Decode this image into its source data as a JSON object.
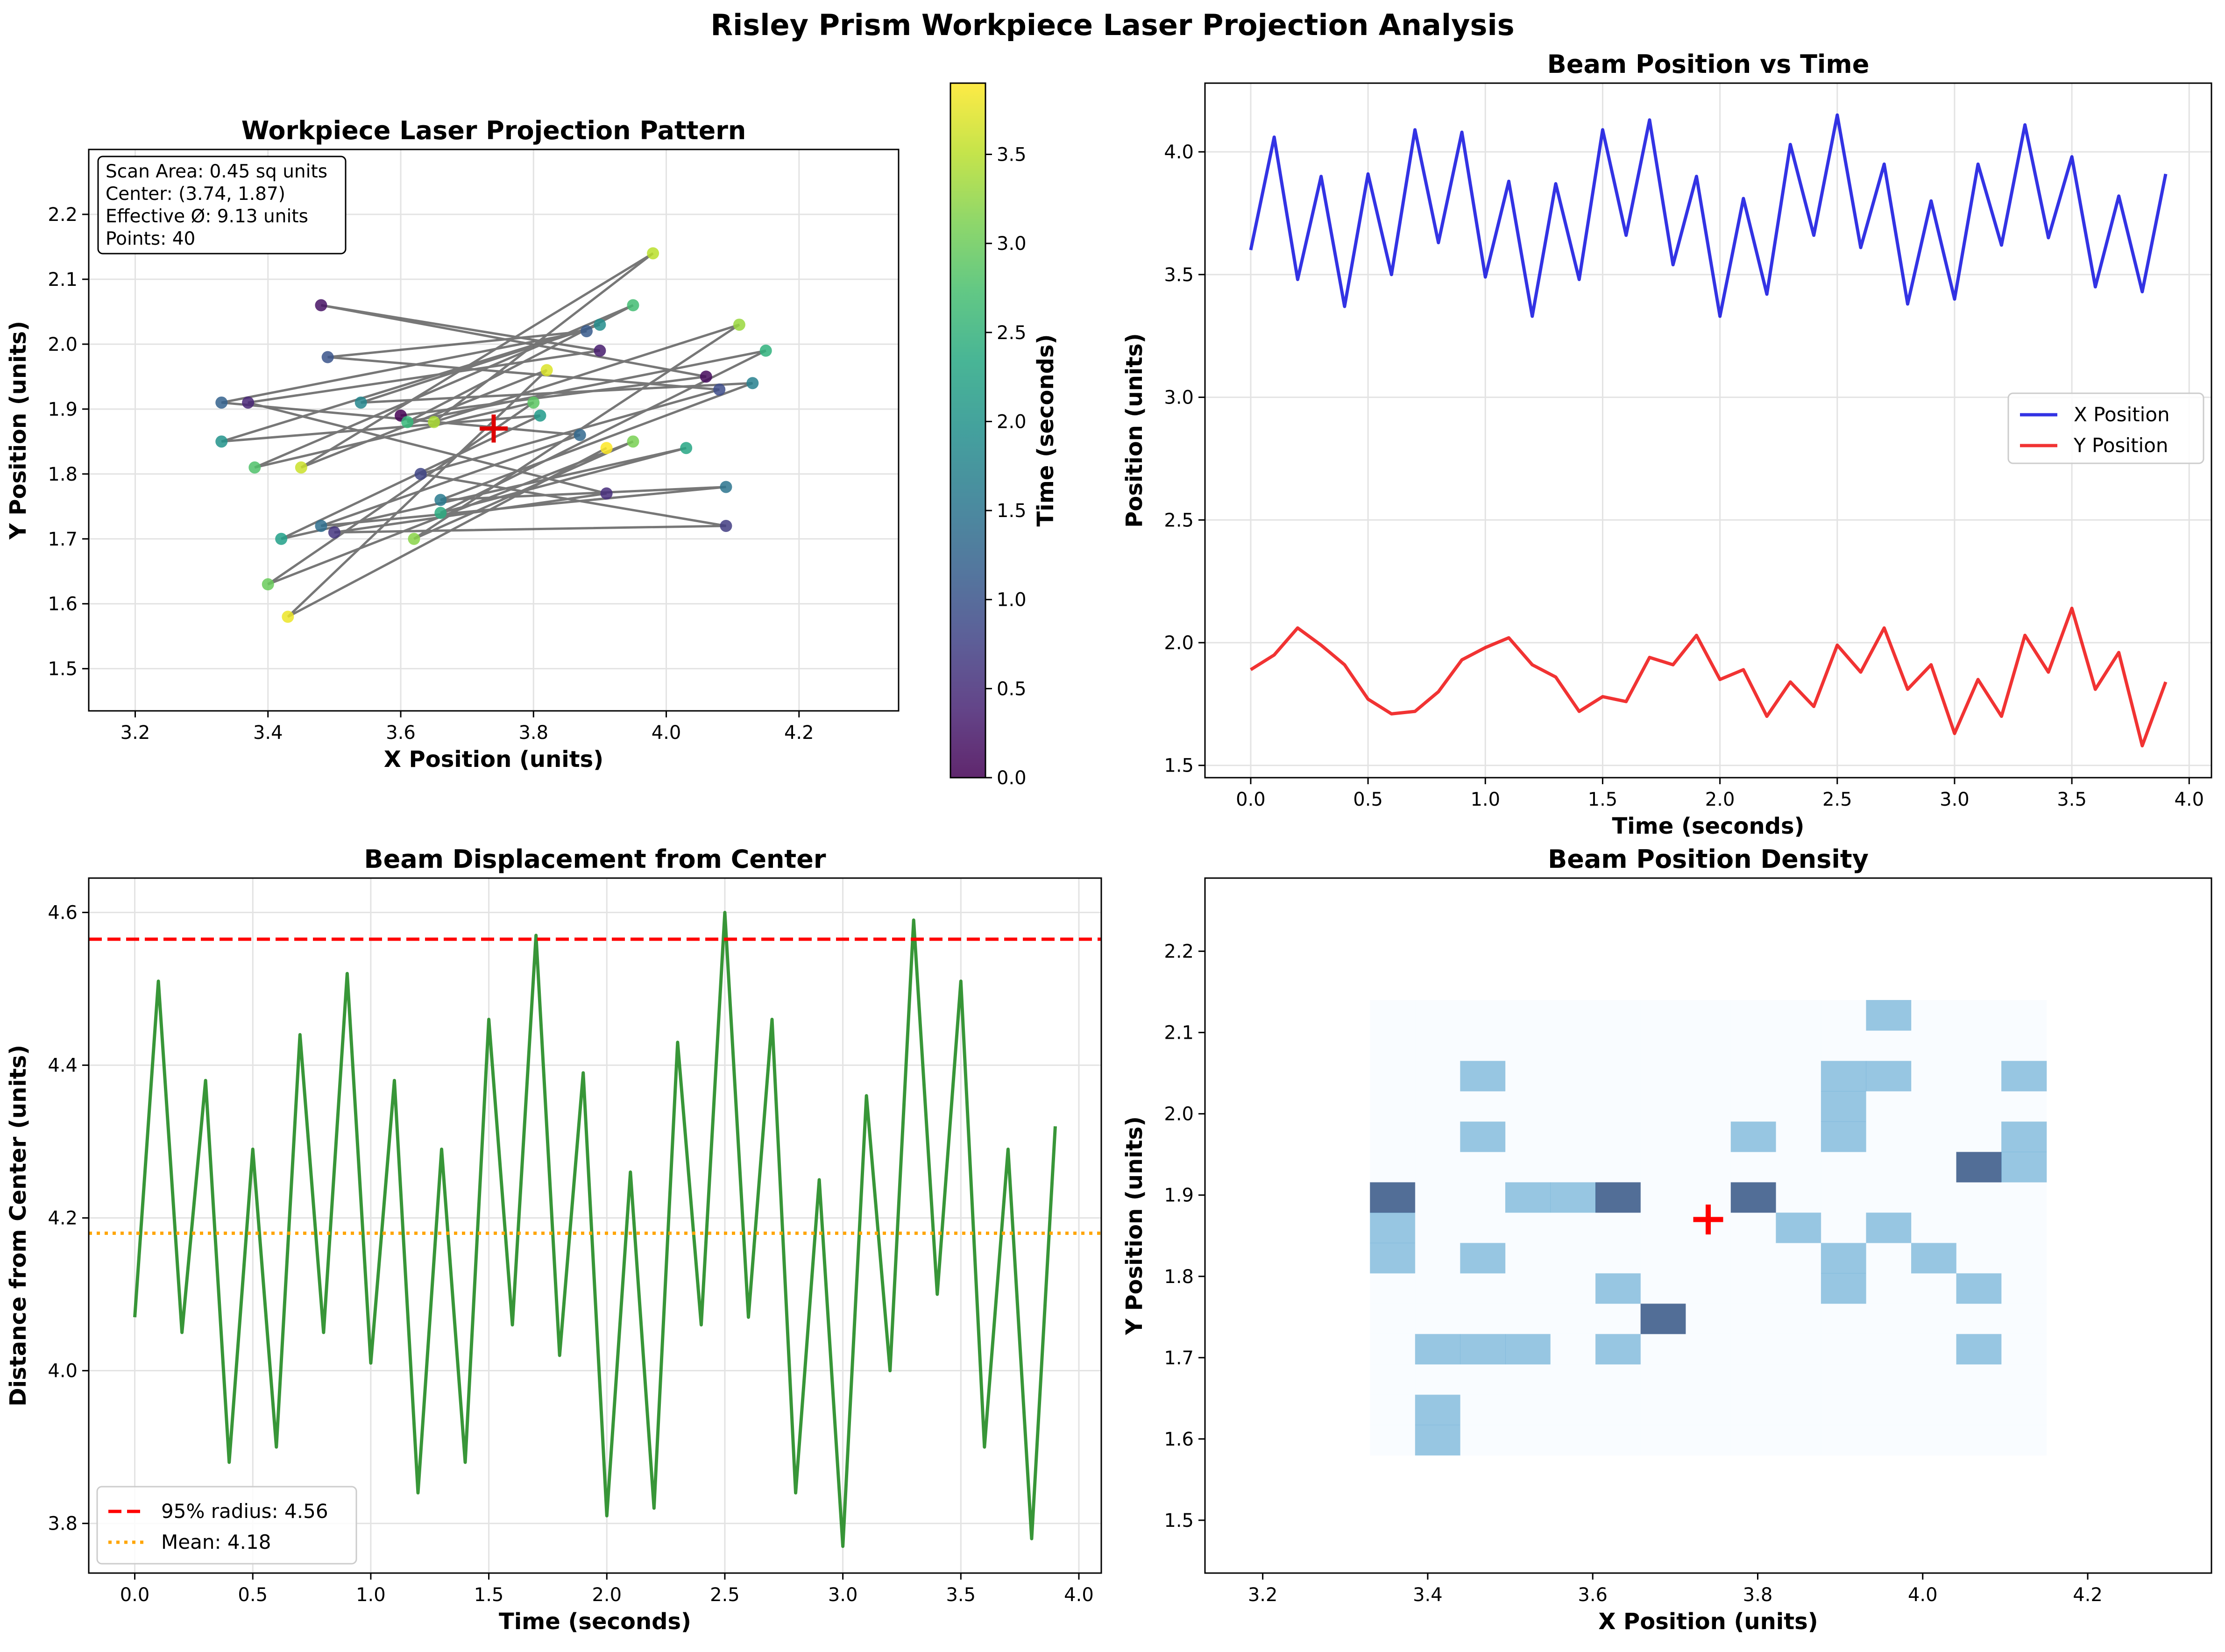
{
  "suptitle": "Risley Prism Workpiece Laser Projection Analysis",
  "colors": {
    "x_series": "#0000dd",
    "y_series": "#ee0000",
    "distance_series": "#228b22",
    "radius95": "#ff0000",
    "mean": "#ffa500",
    "path": "#555555",
    "center_marker": "#dd0000",
    "grid": "#e6e6e6"
  },
  "chart_data": [
    {
      "id": "scatter",
      "type": "scatter",
      "title": "Workpiece Laser Projection Pattern",
      "xlabel": "X Position (units)",
      "ylabel": "Y Position (units)",
      "xlim": [
        3.13,
        4.35
      ],
      "ylim": [
        1.435,
        2.3
      ],
      "xticks": [
        "3.2",
        "3.4",
        "3.6",
        "3.8",
        "4.0",
        "4.2"
      ],
      "yticks": [
        "1.5",
        "1.6",
        "1.7",
        "1.8",
        "1.9",
        "2.0",
        "2.1",
        "2.2"
      ],
      "grid": true,
      "x": [
        3.6,
        4.06,
        3.48,
        3.9,
        3.37,
        3.91,
        3.5,
        4.09,
        3.63,
        4.08,
        3.49,
        3.88,
        3.33,
        3.87,
        3.48,
        4.09,
        3.66,
        4.13,
        3.54,
        3.9,
        3.33,
        3.81,
        3.42,
        4.03,
        3.66,
        4.15,
        3.61,
        3.95,
        3.38,
        3.8,
        3.4,
        3.95,
        3.62,
        4.11,
        3.65,
        3.98,
        3.45,
        3.82,
        3.43,
        3.91
      ],
      "y": [
        1.89,
        1.95,
        2.06,
        1.99,
        1.91,
        1.77,
        1.71,
        1.72,
        1.8,
        1.93,
        1.98,
        2.02,
        1.91,
        1.86,
        1.72,
        1.78,
        1.76,
        1.94,
        1.91,
        2.03,
        1.85,
        1.89,
        1.7,
        1.84,
        1.74,
        1.99,
        1.88,
        2.06,
        1.81,
        1.91,
        1.63,
        1.85,
        1.7,
        2.03,
        1.88,
        2.14,
        1.81,
        1.96,
        1.58,
        1.84
      ],
      "time": [
        0.0,
        0.1,
        0.2,
        0.3,
        0.4,
        0.5,
        0.6,
        0.7,
        0.8,
        0.9,
        1.0,
        1.1,
        1.2,
        1.3,
        1.4,
        1.5,
        1.6,
        1.7,
        1.8,
        1.9,
        2.0,
        2.1,
        2.2,
        2.3,
        2.4,
        2.5,
        2.6,
        2.7,
        2.8,
        2.9,
        3.0,
        3.1,
        3.2,
        3.3,
        3.4,
        3.5,
        3.6,
        3.7,
        3.8,
        3.9
      ],
      "center": [
        3.74,
        1.87
      ],
      "colorbar": {
        "label": "Time (seconds)",
        "range": [
          0.0,
          3.9
        ],
        "ticks": [
          "0.0",
          "0.5",
          "1.0",
          "1.5",
          "2.0",
          "2.5",
          "3.0",
          "3.5"
        ]
      },
      "info_box": [
        "Scan Area: 0.45 sq units",
        "Center: (3.74, 1.87)",
        "Effective Ø: 9.13 units",
        "Points: 40"
      ]
    },
    {
      "id": "time_series",
      "type": "line",
      "title": "Beam Position vs Time",
      "xlabel": "Time (seconds)",
      "ylabel": "Position (units)",
      "xlim": [
        -0.195,
        4.095
      ],
      "ylim": [
        1.45,
        4.28
      ],
      "xticks": [
        "0.0",
        "0.5",
        "1.0",
        "1.5",
        "2.0",
        "2.5",
        "3.0",
        "3.5",
        "4.0"
      ],
      "yticks": [
        "1.5",
        "2.0",
        "2.5",
        "3.0",
        "3.5",
        "4.0"
      ],
      "grid": true,
      "legend_position": "center-right",
      "x": [
        0.0,
        0.1,
        0.2,
        0.3,
        0.4,
        0.5,
        0.6,
        0.7,
        0.8,
        0.9,
        1.0,
        1.1,
        1.2,
        1.3,
        1.4,
        1.5,
        1.6,
        1.7,
        1.8,
        1.9,
        2.0,
        2.1,
        2.2,
        2.3,
        2.4,
        2.5,
        2.6,
        2.7,
        2.8,
        2.9,
        3.0,
        3.1,
        3.2,
        3.3,
        3.4,
        3.5,
        3.6,
        3.7,
        3.8,
        3.9
      ],
      "series": [
        {
          "name": "X Position",
          "values": [
            3.6,
            4.06,
            3.48,
            3.9,
            3.37,
            3.91,
            3.5,
            4.09,
            3.63,
            4.08,
            3.49,
            3.88,
            3.33,
            3.87,
            3.48,
            4.09,
            3.66,
            4.13,
            3.54,
            3.9,
            3.33,
            3.81,
            3.42,
            4.03,
            3.66,
            4.15,
            3.61,
            3.95,
            3.38,
            3.8,
            3.4,
            3.95,
            3.62,
            4.11,
            3.65,
            3.98,
            3.45,
            3.82,
            3.43,
            3.91
          ]
        },
        {
          "name": "Y Position",
          "values": [
            1.89,
            1.95,
            2.06,
            1.99,
            1.91,
            1.77,
            1.71,
            1.72,
            1.8,
            1.93,
            1.98,
            2.02,
            1.91,
            1.86,
            1.72,
            1.78,
            1.76,
            1.94,
            1.91,
            2.03,
            1.85,
            1.89,
            1.7,
            1.84,
            1.74,
            1.99,
            1.88,
            2.06,
            1.81,
            1.91,
            1.63,
            1.85,
            1.7,
            2.03,
            1.88,
            2.14,
            1.81,
            1.96,
            1.58,
            1.84
          ]
        }
      ]
    },
    {
      "id": "distance",
      "type": "line",
      "title": "Beam Displacement from Center",
      "xlabel": "Time (seconds)",
      "ylabel": "Distance from Center (units)",
      "xlim": [
        -0.195,
        4.095
      ],
      "ylim": [
        3.735,
        4.645
      ],
      "xticks": [
        "0.0",
        "0.5",
        "1.0",
        "1.5",
        "2.0",
        "2.5",
        "3.0",
        "3.5",
        "4.0"
      ],
      "yticks": [
        "3.8",
        "4.0",
        "4.2",
        "4.4",
        "4.6"
      ],
      "grid": true,
      "legend_position": "lower-left",
      "x": [
        0.0,
        0.1,
        0.2,
        0.3,
        0.4,
        0.5,
        0.6,
        0.7,
        0.8,
        0.9,
        1.0,
        1.1,
        1.2,
        1.3,
        1.4,
        1.5,
        1.6,
        1.7,
        1.8,
        1.9,
        2.0,
        2.1,
        2.2,
        2.3,
        2.4,
        2.5,
        2.6,
        2.7,
        2.8,
        2.9,
        3.0,
        3.1,
        3.2,
        3.3,
        3.4,
        3.5,
        3.6,
        3.7,
        3.8,
        3.9
      ],
      "values": [
        4.07,
        4.51,
        4.05,
        4.38,
        3.88,
        4.29,
        3.9,
        4.44,
        4.05,
        4.52,
        4.01,
        4.38,
        3.84,
        4.29,
        3.88,
        4.46,
        4.06,
        4.57,
        4.02,
        4.39,
        3.81,
        4.26,
        3.82,
        4.43,
        4.06,
        4.6,
        4.07,
        4.46,
        3.84,
        4.25,
        3.77,
        4.36,
        4.0,
        4.59,
        4.1,
        4.51,
        3.9,
        4.29,
        3.78,
        4.32
      ],
      "radius95": 4.565,
      "mean": 4.18,
      "legend": [
        "95% radius: 4.56",
        "Mean: 4.18"
      ]
    },
    {
      "id": "density",
      "type": "heatmap",
      "title": "Beam Position Density",
      "xlabel": "X Position (units)",
      "ylabel": "Y Position (units)",
      "xlim": [
        3.13,
        4.35
      ],
      "ylim": [
        1.435,
        2.29
      ],
      "xticks": [
        "3.2",
        "3.4",
        "3.6",
        "3.8",
        "4.0",
        "4.2"
      ],
      "yticks": [
        "1.5",
        "1.6",
        "1.7",
        "1.8",
        "1.9",
        "2.0",
        "2.1",
        "2.2"
      ],
      "bins": 15,
      "x_range": [
        3.33,
        4.15
      ],
      "y_range": [
        1.58,
        2.14
      ],
      "x": [
        3.6,
        4.06,
        3.48,
        3.9,
        3.37,
        3.91,
        3.5,
        4.09,
        3.63,
        4.08,
        3.49,
        3.88,
        3.33,
        3.87,
        3.48,
        4.09,
        3.66,
        4.13,
        3.54,
        3.9,
        3.33,
        3.81,
        3.42,
        4.03,
        3.66,
        4.15,
        3.61,
        3.95,
        3.38,
        3.8,
        3.4,
        3.95,
        3.62,
        4.11,
        3.65,
        3.98,
        3.45,
        3.82,
        3.43,
        3.91
      ],
      "y": [
        1.89,
        1.95,
        2.06,
        1.99,
        1.91,
        1.77,
        1.71,
        1.72,
        1.8,
        1.93,
        1.98,
        2.02,
        1.91,
        1.86,
        1.72,
        1.78,
        1.76,
        1.94,
        1.91,
        2.03,
        1.85,
        1.89,
        1.7,
        1.84,
        1.74,
        1.99,
        1.88,
        2.06,
        1.81,
        1.91,
        1.63,
        1.85,
        1.7,
        2.03,
        1.88,
        2.14,
        1.81,
        1.96,
        1.58,
        1.84
      ],
      "center": [
        3.74,
        1.87
      ]
    }
  ]
}
